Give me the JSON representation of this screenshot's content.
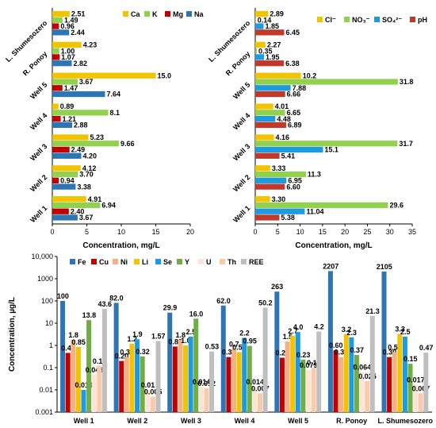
{
  "chart_data": [
    {
      "type": "bar",
      "orientation": "horizontal",
      "categories": [
        "Well 1",
        "Well 2",
        "Well 3",
        "Well 4",
        "Well 5",
        "R. Ponoy",
        "L. Shumesozero"
      ],
      "series": [
        {
          "name": "Ca",
          "color": "#F2C400",
          "values": [
            4.91,
            4.12,
            5.23,
            0.89,
            15.0,
            4.23,
            2.51
          ]
        },
        {
          "name": "K",
          "color": "#92D050",
          "values": [
            6.94,
            3.7,
            9.66,
            8.1,
            3.67,
            1.0,
            1.49
          ]
        },
        {
          "name": "Mg",
          "color": "#C00000",
          "values": [
            2.4,
            0.94,
            2.49,
            1.21,
            1.47,
            1.07,
            0.96
          ]
        },
        {
          "name": "Na",
          "color": "#2E75B6",
          "values": [
            3.67,
            3.38,
            4.2,
            2.88,
            7.64,
            2.82,
            2.44
          ]
        }
      ],
      "value_labels": [
        [
          "4.91",
          "6.94",
          "2.40",
          "3.67"
        ],
        [
          "4.12",
          "3.70",
          "0.94",
          "3.38"
        ],
        [
          "5.23",
          "9.66",
          "2.49",
          "4.20"
        ],
        [
          "0.89",
          "8.1",
          "1.21",
          "2.88"
        ],
        [
          "15.0",
          "3.67",
          "1.47",
          "7.64"
        ],
        [
          "4.23",
          "1.00",
          "1.07",
          "2.82"
        ],
        [
          "2.51",
          "1.49",
          "0.96",
          "2.44"
        ]
      ],
      "xlabel": "Concentration, mg/L",
      "xlim": [
        0,
        20
      ],
      "xticks": [
        "0",
        "5",
        "10",
        "15",
        "20"
      ],
      "legend": "top-right",
      "grid": false
    },
    {
      "type": "bar",
      "orientation": "horizontal",
      "categories": [
        "Well 1",
        "Well 2",
        "Well 3",
        "Well 4",
        "Well 5",
        "R. Ponoy",
        "L. Shumesozero"
      ],
      "series": [
        {
          "name": "Cl⁻",
          "color": "#F2C400",
          "values": [
            3.3,
            3.33,
            4.16,
            4.01,
            10.2,
            2.27,
            2.89
          ]
        },
        {
          "name": "NO₃⁻",
          "color": "#92D050",
          "values": [
            29.6,
            11.3,
            31.7,
            6.65,
            31.8,
            0.35,
            0.14
          ]
        },
        {
          "name": "SO₄²⁻",
          "color": "#1E9BE0",
          "values": [
            11.04,
            6.95,
            15.1,
            4.48,
            7.88,
            1.95,
            1.85
          ]
        },
        {
          "name": "pH",
          "color": "#C0392B",
          "values": [
            5.38,
            6.6,
            5.41,
            6.89,
            6.66,
            6.38,
            6.45
          ]
        }
      ],
      "value_labels": [
        [
          "3.30",
          "29.6",
          "11.04",
          "5.38"
        ],
        [
          "3.33",
          "11.3",
          "6.95",
          "6.60"
        ],
        [
          "4.16",
          "31.7",
          "15.1",
          "5.41"
        ],
        [
          "4.01",
          "6.65",
          "4.48",
          "6.89"
        ],
        [
          "10.2",
          "31.8",
          "7.88",
          "6.66"
        ],
        [
          "2.27",
          "0.35",
          "1.95",
          "6.38"
        ],
        [
          "2.89",
          "0.14",
          "1.85",
          "6.45"
        ]
      ],
      "xlabel": "Concentration, mg/L",
      "xlim": [
        0,
        35
      ],
      "xticks": [
        "0",
        "5",
        "10",
        "15",
        "20",
        "25",
        "30",
        "35"
      ],
      "legend": "top-right",
      "grid": false
    },
    {
      "type": "bar",
      "orientation": "vertical",
      "scale": "log",
      "categories": [
        "Well 1",
        "Well 2",
        "Well 3",
        "Well 4",
        "Well 5",
        "R. Ponoy",
        "L. Shumesozero"
      ],
      "series": [
        {
          "name": "Fe",
          "color": "#2E75B6",
          "values": [
            100,
            82.0,
            29.9,
            62.0,
            263,
            2207,
            2105
          ]
        },
        {
          "name": "Cu",
          "color": "#C00000",
          "values": [
            0.46,
            0.2,
            0.89,
            0.3,
            0.28,
            0.6,
            0.3
          ]
        },
        {
          "name": "Ni",
          "color": "#F4B183",
          "values": [
            1.8,
            0.3,
            1.8,
            0.7,
            1.5,
            0.3,
            0.5
          ]
        },
        {
          "name": "Li",
          "color": "#F2C400",
          "values": [
            0.85,
            1.2,
            1.0,
            0.5,
            2.7,
            3.2,
            3.3
          ]
        },
        {
          "name": "Se",
          "color": "#1E9BE0",
          "values": [
            0.01,
            1.9,
            2.5,
            2.2,
            4.0,
            2.3,
            2.5
          ]
        },
        {
          "name": "Y",
          "color": "#70AD47",
          "values": [
            13.8,
            0.32,
            16.0,
            0.95,
            0.23,
            0.37,
            0.15
          ]
        },
        {
          "name": "U",
          "color": "#FCE4D6",
          "values": [
            0.048,
            0.01,
            0.014,
            0.014,
            0.079,
            0.064,
            0.017
          ]
        },
        {
          "name": "Th",
          "color": "#F8CBAD",
          "values": [
            0.12,
            0.005,
            0.012,
            0.007,
            0.1,
            0.025,
            0.007
          ]
        },
        {
          "name": "REE",
          "color": "#BFBFBF",
          "values": [
            43.6,
            1.57,
            0.53,
            50.2,
            4.2,
            21.3,
            0.47
          ]
        }
      ],
      "value_labels": [
        [
          "100",
          "0.46",
          "1.8",
          "0.85",
          "0.010",
          "13.8",
          "0.048",
          "0.12",
          "43.6"
        ],
        [
          "82.0",
          "0.20",
          "0.30",
          "1.2",
          "1.9",
          "0.32",
          "0.01",
          "0.005",
          "1.57"
        ],
        [
          "29.9",
          "0.89",
          "1.8",
          "1.0",
          "2.5",
          "16.0",
          "0.014",
          "0.012",
          "0.53"
        ],
        [
          "62.0",
          "0.30",
          "0.7",
          "0.50",
          "2.2",
          "0.95",
          "0.014",
          "0.007",
          "50.2"
        ],
        [
          "263",
          "0.28",
          "1.5",
          "2.7",
          "4.0",
          "0.23",
          "0.079",
          "0.10",
          "4.2"
        ],
        [
          "2207",
          "0.60",
          "0.30",
          "3.2",
          "2.3",
          "0.37",
          "0.064",
          "0.025",
          "21.3"
        ],
        [
          "2105",
          "0.30",
          "0.50",
          "3.3",
          "2.5",
          "0.15",
          "0.017",
          "0.007",
          "0.47"
        ]
      ],
      "ylabel": "Concentration, µg/L",
      "ylim": [
        0.001,
        10000
      ],
      "yticks": [
        "0.001",
        "0.01",
        "0.1",
        "1",
        "10",
        "100",
        "1000",
        "10,000"
      ],
      "legend": "top",
      "grid": false
    }
  ]
}
